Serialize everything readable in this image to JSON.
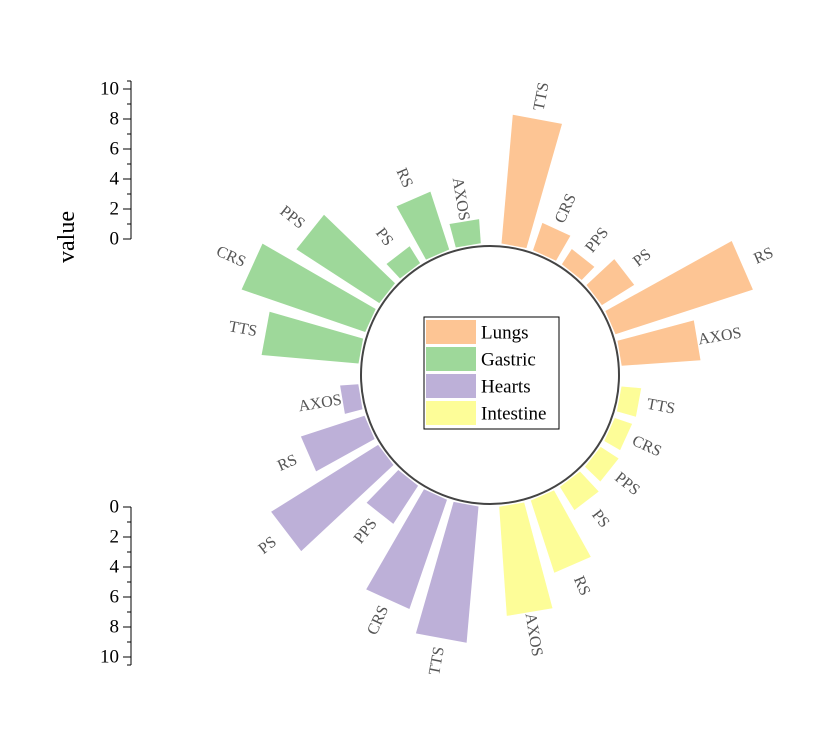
{
  "chart_data": {
    "type": "radial-bar",
    "ylabel": "value",
    "ylim": [
      0,
      10
    ],
    "ticks": [
      "0",
      "2",
      "4",
      "6",
      "8",
      "10"
    ],
    "categories": [
      "TTS",
      "CRS",
      "PPS",
      "PS",
      "RS",
      "AXOS"
    ],
    "groups": [
      {
        "name": "Lungs",
        "color": "#fdc594",
        "values": [
          8.5,
          1.9,
          1.2,
          2.5,
          9.5,
          5.2
        ]
      },
      {
        "name": "Intestine",
        "color": "#fdfd98",
        "values": [
          1.3,
          1.2,
          1.4,
          1.8,
          5.0,
          7.2
        ]
      },
      {
        "name": "Hearts",
        "color": "#bdb0d8",
        "values": [
          9.0,
          7.6,
          3.0,
          8.3,
          4.4,
          1.2
        ]
      },
      {
        "name": "Gastric",
        "color": "#9ed89a",
        "values": [
          6.4,
          8.6,
          6.5,
          1.3,
          4.0,
          1.6
        ]
      }
    ]
  }
}
